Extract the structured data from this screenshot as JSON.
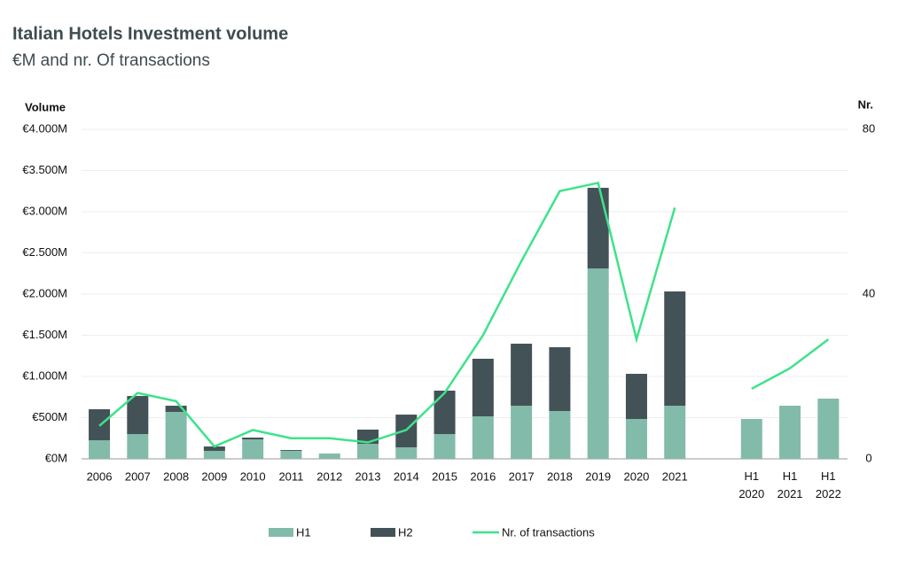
{
  "chart_data": {
    "type": "bar",
    "title": "Italian Hotels Investment volume",
    "subtitle": "€M and nr. Of transactions",
    "y_label": "Volume",
    "y2_label": "Nr.",
    "categories": [
      "2006",
      "2007",
      "2008",
      "2009",
      "2010",
      "2011",
      "2012",
      "2013",
      "2014",
      "2015",
      "2016",
      "2017",
      "2018",
      "2019",
      "2020",
      "2021",
      null,
      "H1 2020",
      "H1 2021",
      "H1 2022"
    ],
    "series": [
      {
        "name": "H1",
        "color": "#82bba9",
        "values": [
          226,
          301,
          570,
          97,
          236,
          97,
          65,
          183,
          140,
          301,
          516,
          645,
          580,
          2311,
          484,
          645,
          null,
          484,
          645,
          731
        ]
      },
      {
        "name": "H2",
        "color": "#435257",
        "values": [
          376,
          462,
          75,
          53,
          22,
          10,
          0,
          172,
          397,
          527,
          699,
          753,
          775,
          979,
          548,
          1387,
          null,
          null,
          null,
          null
        ]
      },
      {
        "name": "Nr. of transactions",
        "color": "#3de38a",
        "type": "line",
        "axis": "y2",
        "values": [
          8,
          16,
          14,
          3,
          7,
          5,
          5,
          4,
          7,
          16,
          30,
          48,
          65,
          67,
          29,
          61,
          null,
          17,
          22,
          29
        ]
      }
    ],
    "ylim": [
      0,
      4000
    ],
    "yticks": [
      {
        "value": 0,
        "label": "€0M"
      },
      {
        "value": 500,
        "label": "€500M"
      },
      {
        "value": 1000,
        "label": "€1.000M"
      },
      {
        "value": 1500,
        "label": "€1.500M"
      },
      {
        "value": 2000,
        "label": "€2.000M"
      },
      {
        "value": 2500,
        "label": "€2.500M"
      },
      {
        "value": 3000,
        "label": "€3.000M"
      },
      {
        "value": 3500,
        "label": "€3.500M"
      },
      {
        "value": 4000,
        "label": "€4.000M"
      }
    ],
    "y2lim": [
      0,
      80
    ],
    "y2ticks": [
      0,
      40,
      80
    ],
    "grid": true,
    "stacked": true,
    "legend": "bottom"
  }
}
